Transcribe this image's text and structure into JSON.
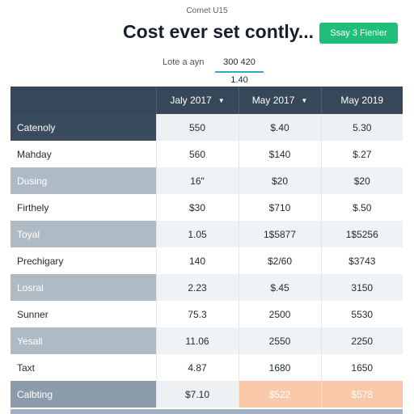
{
  "header": {
    "kicker": "Cornet U15",
    "title": "Cost ever set contly...",
    "action_button": "Ssay 3 Fienler"
  },
  "filter": {
    "label": "Lote a ayn",
    "value": "300 420 1.40"
  },
  "table": {
    "columns": [
      "Jaly 2017",
      "May 2017",
      "May 2019"
    ],
    "rows": [
      {
        "label": "Catenoly",
        "values": [
          "550",
          "$.40",
          "5.30"
        ]
      },
      {
        "label": "Mahday",
        "values": [
          "560",
          "$140",
          "$.27"
        ]
      },
      {
        "label": "Dusing",
        "values": [
          "16\"",
          "$20",
          "$20"
        ]
      },
      {
        "label": "Firthely",
        "values": [
          "$30",
          "$710",
          "$.50"
        ]
      },
      {
        "label": "Toyal",
        "values": [
          "1.05",
          "1$5877",
          "1$5256"
        ]
      },
      {
        "label": "Prechigary",
        "values": [
          "140",
          "$2/60",
          "$3743"
        ]
      },
      {
        "label": "Losral",
        "values": [
          "2.23",
          "$.45",
          "3150"
        ]
      },
      {
        "label": "Sunner",
        "values": [
          "75.3",
          "2500",
          "5530"
        ]
      },
      {
        "label": "Yesall",
        "values": [
          "11.06",
          "2550",
          "2250"
        ]
      },
      {
        "label": "Taxt",
        "values": [
          "4.87",
          "1680",
          "1650"
        ]
      },
      {
        "label": "Calbting",
        "values": [
          "$7.10",
          "$522",
          "$578"
        ]
      }
    ]
  },
  "colors": {
    "header_dark": "#36475a",
    "accent_green": "#1fbf7a",
    "highlight_peach": "#f9c9a9",
    "underline_blue": "#33a7c9"
  },
  "icons": {
    "column_sort": "caret-down-icon"
  }
}
